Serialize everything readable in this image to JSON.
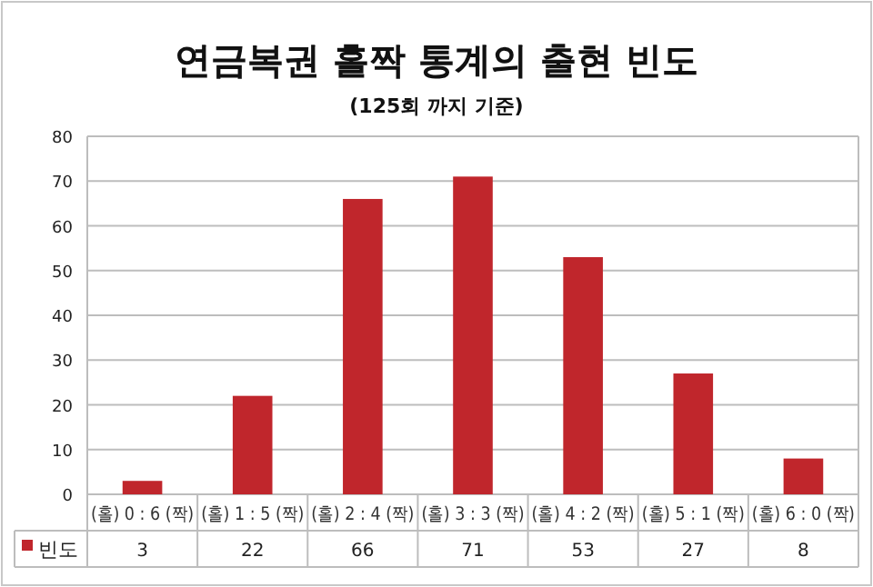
{
  "chart_data": {
    "type": "bar",
    "title": "연금복권 홀짝 통계의 출현 빈도",
    "subtitle": "(125회 까지 기준)",
    "categories": [
      "(홀) 0 : 6 (짝)",
      "(홀) 1 : 5 (짝)",
      "(홀) 2 : 4 (짝)",
      "(홀) 3 : 3 (짝)",
      "(홀) 4 : 2 (짝)",
      "(홀) 5 : 1 (짝)",
      "(홀) 6 : 0 (짝)"
    ],
    "series": [
      {
        "name": "빈도",
        "color": "#c0262c",
        "values": [
          3,
          22,
          66,
          71,
          53,
          27,
          8
        ]
      }
    ],
    "ylim": [
      0,
      80
    ],
    "yticks": [
      0,
      10,
      20,
      30,
      40,
      50,
      60,
      70,
      80
    ],
    "grid": "y",
    "legend": "bottom",
    "data_labels": true
  }
}
